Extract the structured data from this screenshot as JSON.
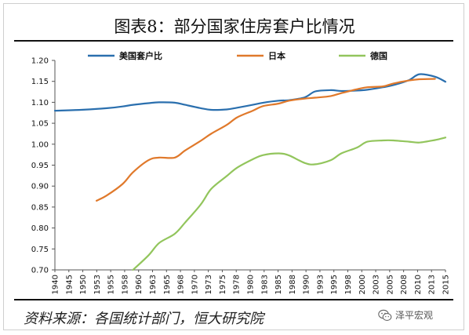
{
  "title": "图表8：部分国家住房套户比情况",
  "source": "资料来源：各国统计部门，恒大研究院",
  "watermark": {
    "text": "泽平宏观",
    "icon": "wechat-icon"
  },
  "chart_data": {
    "type": "line",
    "ylim": [
      0.7,
      1.2
    ],
    "yticks": [
      "0.70",
      "0.75",
      "0.80",
      "0.85",
      "0.90",
      "0.95",
      "1.00",
      "1.05",
      "1.10",
      "1.15",
      "1.20"
    ],
    "x_tick_labels": [
      "1940",
      "1945",
      "1950",
      "1953",
      "1955",
      "1958",
      "1960",
      "1963",
      "1965",
      "1968",
      "1970",
      "1973",
      "1975",
      "1978",
      "1980",
      "1983",
      "1985",
      "1988",
      "1990",
      "1993",
      "1995",
      "1998",
      "2000",
      "2003",
      "2005",
      "2008",
      "2010",
      "2013",
      "2015"
    ],
    "legend_position": "top",
    "series": [
      {
        "name": "美国套户比",
        "color": "#2a6fae",
        "points": [
          [
            1940,
            1.08
          ],
          [
            1945,
            1.082
          ],
          [
            1950,
            1.086
          ],
          [
            1953,
            1.09
          ],
          [
            1955,
            1.094
          ],
          [
            1958,
            1.098
          ],
          [
            1960,
            1.1
          ],
          [
            1963,
            1.099
          ],
          [
            1965,
            1.094
          ],
          [
            1968,
            1.086
          ],
          [
            1970,
            1.082
          ],
          [
            1973,
            1.083
          ],
          [
            1975,
            1.087
          ],
          [
            1978,
            1.094
          ],
          [
            1980,
            1.099
          ],
          [
            1983,
            1.104
          ],
          [
            1985,
            1.105
          ],
          [
            1988,
            1.112
          ],
          [
            1990,
            1.126
          ],
          [
            1993,
            1.129
          ],
          [
            1995,
            1.127
          ],
          [
            1998,
            1.128
          ],
          [
            2000,
            1.13
          ],
          [
            2003,
            1.136
          ],
          [
            2005,
            1.141
          ],
          [
            2008,
            1.153
          ],
          [
            2010,
            1.167
          ],
          [
            2013,
            1.161
          ],
          [
            2015,
            1.149
          ]
        ]
      },
      {
        "name": "日本",
        "color": "#e0792b",
        "points": [
          [
            1948,
            0.865
          ],
          [
            1950,
            0.878
          ],
          [
            1953,
            0.905
          ],
          [
            1955,
            0.933
          ],
          [
            1958,
            0.962
          ],
          [
            1960,
            0.968
          ],
          [
            1963,
            0.968
          ],
          [
            1965,
            0.985
          ],
          [
            1968,
            1.008
          ],
          [
            1970,
            1.025
          ],
          [
            1973,
            1.046
          ],
          [
            1975,
            1.064
          ],
          [
            1978,
            1.08
          ],
          [
            1980,
            1.091
          ],
          [
            1983,
            1.097
          ],
          [
            1985,
            1.104
          ],
          [
            1988,
            1.109
          ],
          [
            1990,
            1.111
          ],
          [
            1993,
            1.115
          ],
          [
            1995,
            1.122
          ],
          [
            1998,
            1.131
          ],
          [
            2000,
            1.136
          ],
          [
            2003,
            1.138
          ],
          [
            2005,
            1.145
          ],
          [
            2008,
            1.152
          ],
          [
            2010,
            1.155
          ],
          [
            2013,
            1.156
          ]
        ]
      },
      {
        "name": "德国",
        "color": "#92c55c",
        "points": [
          [
            1955,
            0.7
          ],
          [
            1958,
            0.735
          ],
          [
            1960,
            0.764
          ],
          [
            1963,
            0.786
          ],
          [
            1965,
            0.813
          ],
          [
            1968,
            0.856
          ],
          [
            1970,
            0.893
          ],
          [
            1973,
            0.924
          ],
          [
            1975,
            0.944
          ],
          [
            1978,
            0.964
          ],
          [
            1980,
            0.974
          ],
          [
            1983,
            0.978
          ],
          [
            1985,
            0.973
          ],
          [
            1988,
            0.955
          ],
          [
            1990,
            0.952
          ],
          [
            1993,
            0.962
          ],
          [
            1995,
            0.978
          ],
          [
            1998,
            0.992
          ],
          [
            2000,
            1.006
          ],
          [
            2003,
            1.009
          ],
          [
            2005,
            1.009
          ],
          [
            2008,
            1.006
          ],
          [
            2010,
            1.004
          ],
          [
            2013,
            1.01
          ],
          [
            2015,
            1.016
          ]
        ]
      }
    ]
  }
}
